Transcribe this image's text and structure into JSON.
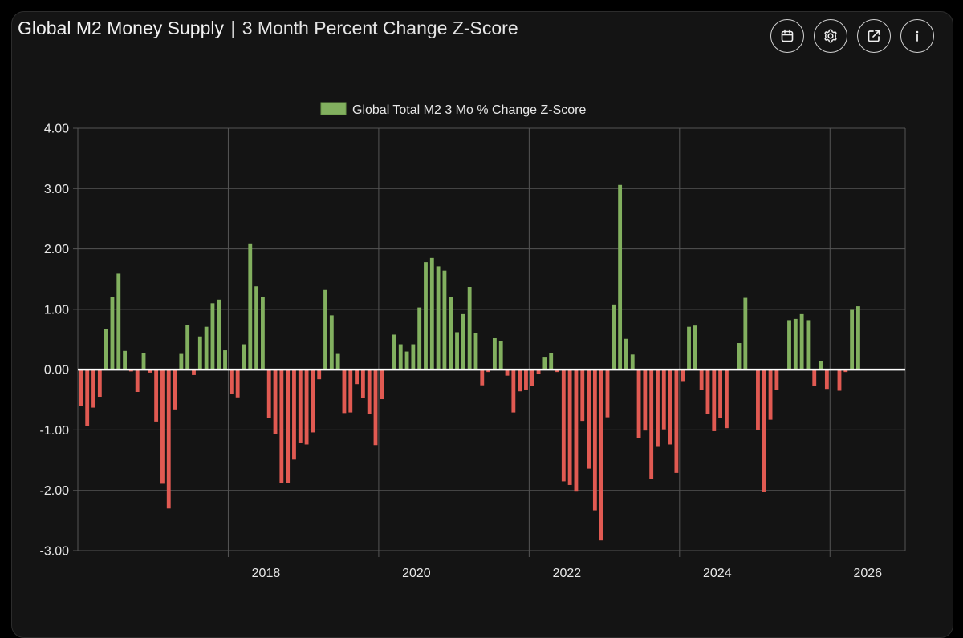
{
  "header": {
    "title_main": "Global M2 Money Supply",
    "title_sep": "|",
    "title_sub": "3 Month Percent Change Z-Score",
    "buttons": [
      {
        "name": "calendar-button",
        "icon": "calendar-icon"
      },
      {
        "name": "settings-button",
        "icon": "gear-icon"
      },
      {
        "name": "open-external-button",
        "icon": "external-link-icon"
      },
      {
        "name": "info-button",
        "icon": "info-icon"
      }
    ]
  },
  "colors": {
    "positive": "#82b05f",
    "negative": "#e15a52",
    "zero_line": "#ffffff",
    "grid": "#555555",
    "background": "#141414"
  },
  "chart_data": {
    "type": "bar",
    "legend": "Global Total M2 3 Mo % Change Z-Score",
    "legend_position": "top-center",
    "x_start": "2016-01",
    "x_step": "month",
    "x_ticks": [
      "2018",
      "2020",
      "2022",
      "2024",
      "2026"
    ],
    "y_ticks": [
      "4.00",
      "3.00",
      "2.00",
      "1.00",
      "0.00",
      "-1.00",
      "-2.00",
      "-3.00"
    ],
    "ylim": [
      -3,
      4
    ],
    "xlim": [
      "2016-01",
      "2027-01"
    ],
    "grid": true,
    "values": [
      -0.6,
      -0.93,
      -0.63,
      -0.45,
      0.67,
      1.21,
      1.59,
      0.31,
      -0.03,
      -0.37,
      0.28,
      -0.05,
      -0.86,
      -1.89,
      -2.3,
      -0.66,
      0.26,
      0.74,
      -0.09,
      0.55,
      0.71,
      1.1,
      1.16,
      0.32,
      -0.41,
      -0.46,
      0.42,
      2.09,
      1.38,
      1.2,
      -0.8,
      -1.07,
      -1.88,
      -1.88,
      -1.49,
      -1.22,
      -1.24,
      -1.04,
      -0.16,
      1.32,
      0.9,
      0.26,
      -0.72,
      -0.71,
      -0.24,
      -0.47,
      -0.73,
      -1.25,
      -0.49,
      0.0,
      0.58,
      0.42,
      0.3,
      0.42,
      1.03,
      1.78,
      1.85,
      1.71,
      1.64,
      1.21,
      0.62,
      0.92,
      1.37,
      0.6,
      -0.26,
      -0.04,
      0.52,
      0.47,
      -0.1,
      -0.71,
      -0.36,
      -0.33,
      -0.27,
      -0.07,
      0.2,
      0.27,
      -0.04,
      -1.85,
      -1.91,
      -2.02,
      -0.85,
      -1.64,
      -2.33,
      -2.83,
      -0.79,
      1.08,
      3.06,
      0.51,
      0.25,
      -1.14,
      -1.01,
      -1.81,
      -1.28,
      -0.99,
      -1.24,
      -1.71,
      -0.19,
      0.71,
      0.73,
      -0.34,
      -0.73,
      -1.02,
      -0.8,
      -0.97,
      0.0,
      0.44,
      1.19,
      0.0,
      -1.0,
      -2.03,
      -0.83,
      -0.34,
      0.0,
      0.82,
      0.84,
      0.92,
      0.82,
      -0.27,
      0.14,
      -0.32,
      0.0,
      -0.35,
      -0.04,
      0.99,
      1.05
    ]
  }
}
